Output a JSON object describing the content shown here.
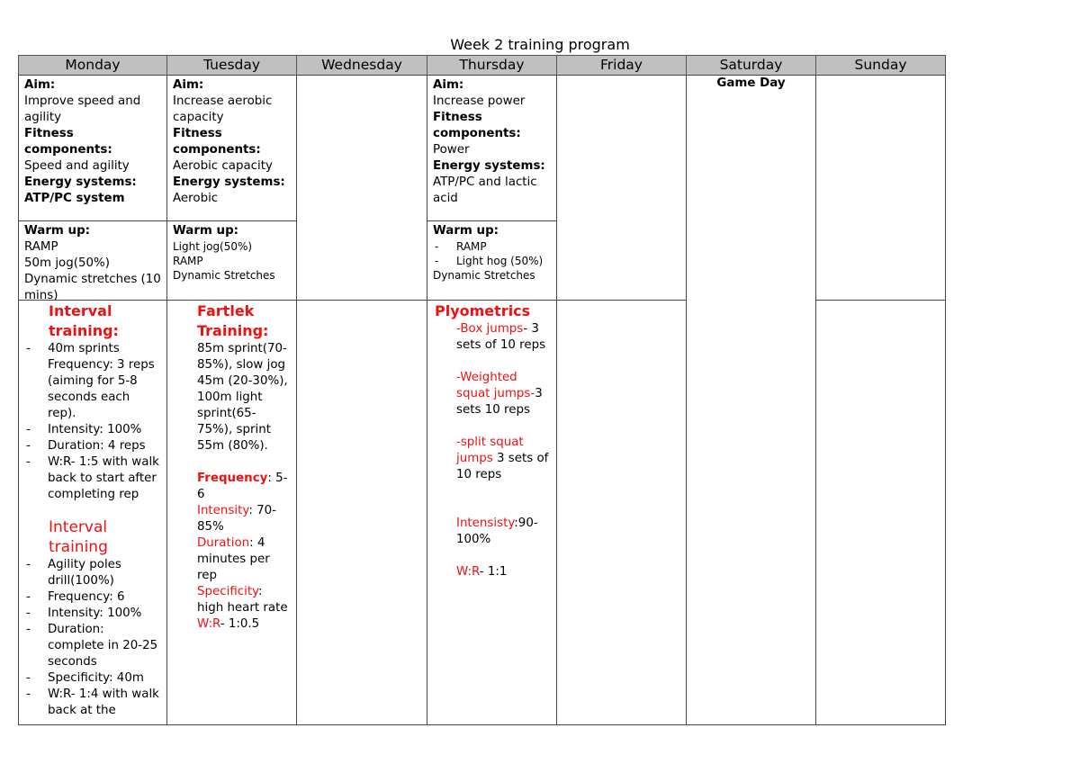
{
  "title": "Week 2 training program",
  "days": [
    "Monday",
    "Tuesday",
    "Wednesday",
    "Thursday",
    "Friday",
    "Saturday",
    "Sunday"
  ],
  "labels": {
    "aim": "Aim:",
    "fitness": "Fitness components:",
    "energy": "Energy systems:",
    "warmup": "Warm up:"
  },
  "monday": {
    "aim": "Improve speed and agility",
    "fitness": "Speed and agility",
    "energy": "ATP/PC system",
    "warmup": [
      "RAMP",
      "50m jog(50%)",
      "Dynamic stretches (10 mins)"
    ],
    "session1": {
      "title": "Interval training:",
      "items": [
        "40m sprints Frequency: 3 reps (aiming for 5-8 seconds each rep).",
        "Intensity: 100%",
        "Duration: 4 reps",
        "W:R- 1:5 with walk back to start after completing rep"
      ]
    },
    "session2": {
      "title": "Interval training",
      "items": [
        "Agility poles drill(100%)",
        "Frequency: 6",
        "Intensity: 100%",
        "Duration: complete in 20-25 seconds",
        "Specificity: 40m",
        "W:R- 1:4 with walk back at the"
      ]
    }
  },
  "tuesday": {
    "aim": "Increase aerobic capacity",
    "fitness": "Aerobic capacity",
    "energy": "Aerobic",
    "warmup": [
      "Light jog(50%)",
      "RAMP",
      "Dynamic Stretches"
    ],
    "session": {
      "title": "Fartlek Training:",
      "text": "85m sprint(70-85%), slow jog 45m (20-30%), 100m light sprint(65-75%), sprint 55m (80%).",
      "details": [
        {
          "label": "Frequency",
          "value": ": 5-6"
        },
        {
          "label": "Intensity",
          "value": ": 70-85%"
        },
        {
          "label": "Duration",
          "value": ": 4 minutes per rep"
        },
        {
          "label": "Specificity",
          "value": ": high heart rate"
        },
        {
          "label": "W:R",
          "value": "- 1:0.5"
        }
      ]
    }
  },
  "thursday": {
    "aim": "Increase power",
    "fitness": "Power",
    "energy_label": "Energy systems:",
    "energy": "ATP/PC and lactic acid",
    "warmup_items": [
      "RAMP",
      "Light hog (50%)"
    ],
    "warmup_extra": "Dynamic Stretches",
    "session": {
      "title": "Plyometrics",
      "exercises": [
        {
          "name": "-Box jumps",
          "rest": "- 3 sets of 10 reps"
        },
        {
          "name": "-Weighted squat jumps-",
          "rest": "3 sets 10 reps"
        },
        {
          "name": "-split squat jumps",
          "rest": " 3 sets of 10 reps"
        }
      ],
      "intensity_label": "Intensisty",
      "intensity_value": ":90-100%",
      "wr_label": "W:R",
      "wr_value": "- 1:1"
    }
  },
  "saturday": {
    "text": "Game Day"
  }
}
